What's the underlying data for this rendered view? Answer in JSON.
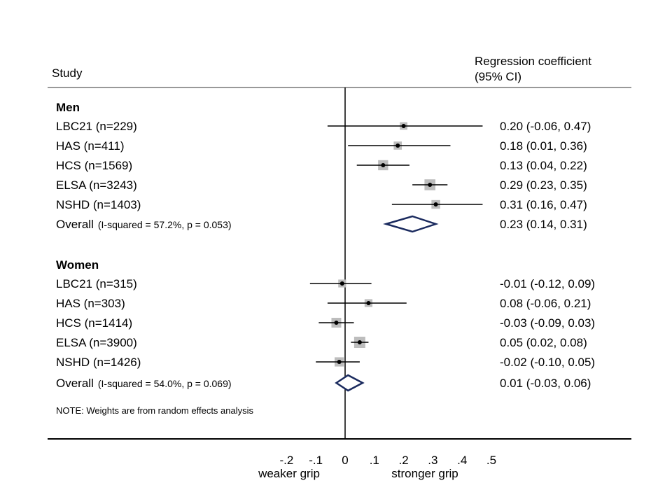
{
  "chart_data": {
    "type": "forest",
    "header": {
      "study": "Study",
      "effect_line1": "Regression coefficient",
      "effect_line2": "(95% CI)"
    },
    "groups": [
      {
        "name": "Men",
        "studies": [
          {
            "label": "LBC21 (n=229)",
            "est": 0.2,
            "lo": -0.06,
            "hi": 0.47,
            "ci_text": "0.20 (-0.06, 0.47)",
            "weight": 0.35
          },
          {
            "label": "HAS  (n=411)",
            "est": 0.18,
            "lo": 0.01,
            "hi": 0.36,
            "ci_text": "0.18 (0.01, 0.36)",
            "weight": 0.45
          },
          {
            "label": "HCS  (n=1569)",
            "est": 0.13,
            "lo": 0.04,
            "hi": 0.22,
            "ci_text": "0.13 (0.04, 0.22)",
            "weight": 0.8
          },
          {
            "label": "ELSA  (n=3243)",
            "est": 0.29,
            "lo": 0.23,
            "hi": 0.35,
            "ci_text": "0.29 (0.23, 0.35)",
            "weight": 0.95
          },
          {
            "label": "NSHD  (n=1403)",
            "est": 0.31,
            "lo": 0.16,
            "hi": 0.47,
            "ci_text": "0.31 (0.16, 0.47)",
            "weight": 0.55
          }
        ],
        "overall": {
          "label": "Overall",
          "stats": "(I-squared = 57.2%, p = 0.053)",
          "est": 0.23,
          "lo": 0.14,
          "hi": 0.31,
          "ci_text": "0.23 (0.14, 0.31)"
        }
      },
      {
        "name": "Women",
        "studies": [
          {
            "label": "LBC21 (n=315)",
            "est": -0.01,
            "lo": -0.12,
            "hi": 0.09,
            "ci_text": "-0.01 (-0.12, 0.09)",
            "weight": 0.4
          },
          {
            "label": "HAS  (n=303)",
            "est": 0.08,
            "lo": -0.06,
            "hi": 0.21,
            "ci_text": "0.08 (-0.06, 0.21)",
            "weight": 0.4
          },
          {
            "label": "HCS  (n=1414)",
            "est": -0.03,
            "lo": -0.09,
            "hi": 0.03,
            "ci_text": "-0.03 (-0.09, 0.03)",
            "weight": 0.75
          },
          {
            "label": "ELSA  (n=3900)",
            "est": 0.05,
            "lo": 0.02,
            "hi": 0.08,
            "ci_text": "0.05 (0.02, 0.08)",
            "weight": 1.0
          },
          {
            "label": "NSHD  (n=1426)",
            "est": -0.02,
            "lo": -0.1,
            "hi": 0.05,
            "ci_text": "-0.02 (-0.10, 0.05)",
            "weight": 0.65
          }
        ],
        "overall": {
          "label": "Overall",
          "stats": "(I-squared = 54.0%, p = 0.069)",
          "est": 0.01,
          "lo": -0.03,
          "hi": 0.06,
          "ci_text": "0.01 (-0.03, 0.06)"
        }
      }
    ],
    "note": "NOTE: Weights are from random effects analysis",
    "x_ticks": [
      -0.2,
      -0.1,
      0,
      0.1,
      0.2,
      0.3,
      0.4,
      0.5
    ],
    "x_tick_labels": [
      "-.2",
      "-.1",
      "0",
      ".1",
      ".2",
      ".3",
      ".4",
      ".5"
    ],
    "xlim": [
      -0.2,
      0.5
    ],
    "xlabel_left": "weaker grip",
    "xlabel_right": "stronger grip",
    "colors": {
      "box": "#bdbdbd",
      "diamond": "#1a2a5e",
      "line": "#000000",
      "rule": "#999999"
    }
  }
}
